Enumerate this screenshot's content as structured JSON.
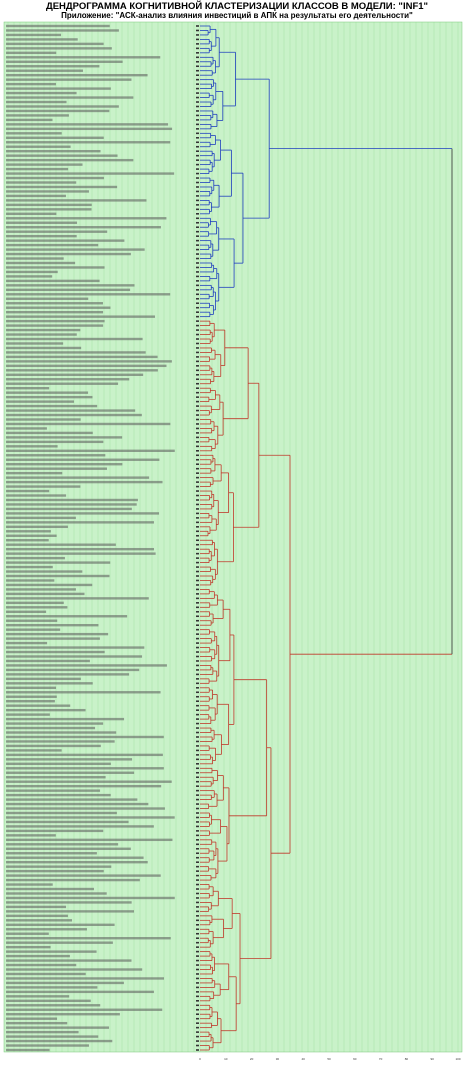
{
  "title": "ДЕНДРОГРАММА КОГНИТИВНОЙ КЛАСТЕРИЗАЦИИ КЛАССОВ В МОДЕЛИ: \"INF1\"",
  "subtitle": "Приложение: \"АСК-анализ влияния инвестиций в АПК на результаты его деятельности\"",
  "colors": {
    "background": "#c9f2c9",
    "grid": "#8fd68f",
    "cluster_blue": "#1f3fbf",
    "cluster_red": "#c0392b",
    "label_text": "#000000"
  },
  "chart_data": {
    "type": "dendrogram",
    "orientation": "horizontal",
    "leaf_count": 230,
    "grid": true,
    "clusters": [
      {
        "color": "blue",
        "leaf_range": [
          0,
          65
        ]
      },
      {
        "color": "red",
        "leaf_range": [
          66,
          229
        ]
      }
    ],
    "x_ticks": [
      "0",
      "10",
      "20",
      "30",
      "40",
      "50",
      "60",
      "70",
      "80",
      "90",
      "100"
    ]
  }
}
